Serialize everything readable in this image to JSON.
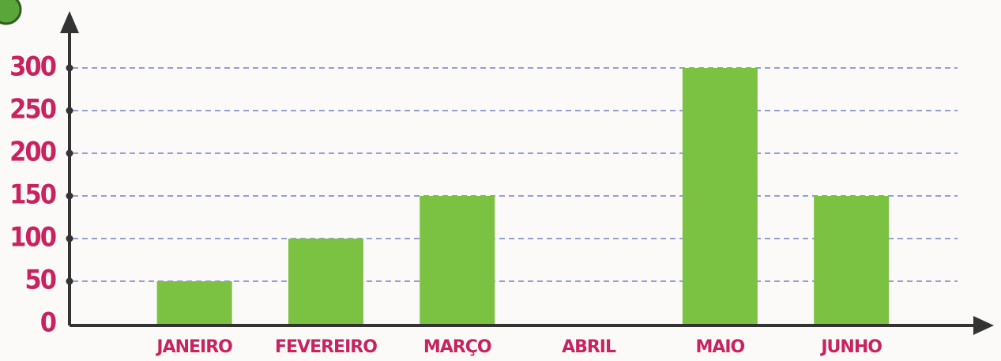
{
  "chart_data": {
    "type": "bar",
    "categories": [
      "JANEIRO",
      "FEVEREIRO",
      "MARÇO",
      "ABRIL",
      "MAIO",
      "JUNHO"
    ],
    "values": [
      50,
      100,
      150,
      0,
      300,
      150
    ],
    "color": "#7cc242",
    "ylim": [
      0,
      300
    ],
    "yticks": [
      0,
      50,
      100,
      150,
      200,
      250,
      300
    ],
    "grid": true
  }
}
